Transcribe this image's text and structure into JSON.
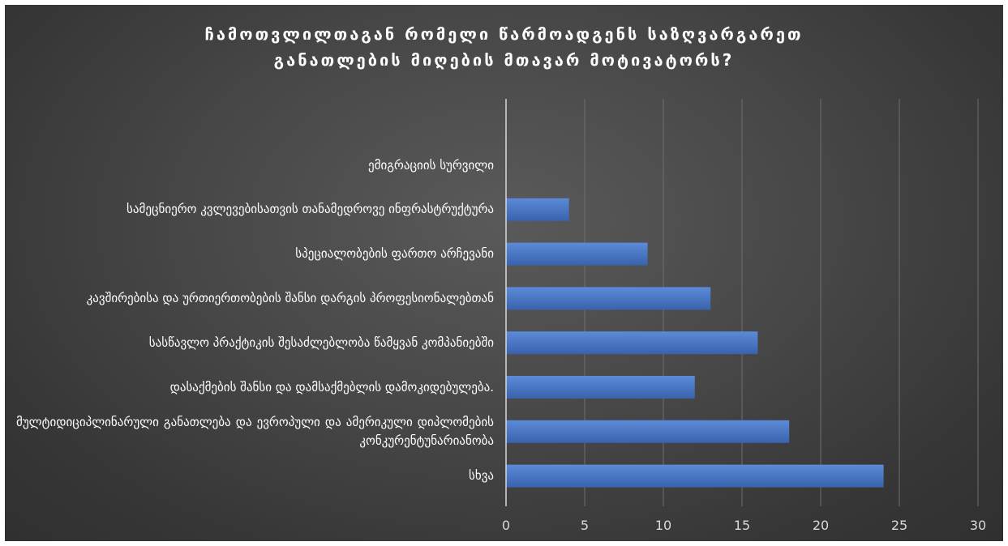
{
  "chart_data": {
    "type": "bar",
    "orientation": "horizontal",
    "title": "ჩამოთვლილთაგან რომელი წარმოადგენს საზღვარგარეთ\nგანათლების მიღების მთავარ მოტივატორს?",
    "categories": [
      "ემიგრაციის სურვილი",
      "სამეცნიერო კვლევებისათვის თანამედროვე ინფრასტრუქტურა",
      "სპეციალობების ფართო არჩევანი",
      "კავშირებისა და ურთიერთობების შანსი დარგის პროფესიონალებთან",
      "სასწავლო პრაქტიკის შესაძლებლობა წამყვან კომპანიებში",
      "დასაქმების შანსი და დამსაქმებლის დამოკიდებულება.",
      "მულტიდიციპლინარული განათლება და ევროპული და ამერიკული დიპლომების კონკურენტუნარიანობა",
      "სხვა"
    ],
    "values": [
      0,
      4,
      9,
      13,
      16,
      12,
      18,
      24
    ],
    "xlim": [
      0,
      30
    ],
    "x_ticks": [
      0,
      5,
      10,
      15,
      20,
      25,
      30
    ],
    "x_tick_labels": [
      "0",
      "5",
      "10",
      "15",
      "20",
      "25",
      "30"
    ],
    "xlabel": "",
    "ylabel": "",
    "grid": true,
    "legend": "none",
    "colors": {
      "bar": "#4472c4",
      "bar_top": "#5b8bd9",
      "bar_bottom": "#3a62ad",
      "gridline": "#6e6e6e",
      "axis": "#d9d9d9",
      "text": "#ffffff",
      "tick_text": "#d9d9d9"
    }
  }
}
